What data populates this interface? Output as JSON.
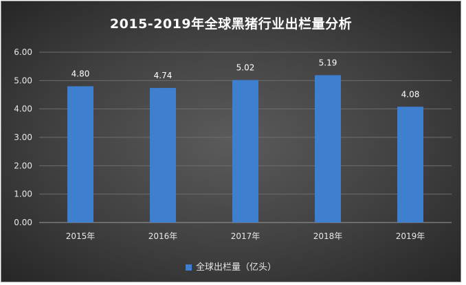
{
  "chart_data": {
    "type": "bar",
    "title": "2015-2019年全球黑猪行业出栏量分析",
    "categories": [
      "2015年",
      "2016年",
      "2017年",
      "2018年",
      "2019年"
    ],
    "series": [
      {
        "name": "全球出栏量（亿头）",
        "values": [
          4.8,
          4.74,
          5.02,
          5.19,
          4.08
        ]
      }
    ],
    "data_labels": [
      "4.80",
      "4.74",
      "5.02",
      "5.19",
      "4.08"
    ],
    "y_ticks": [
      "0.00",
      "1.00",
      "2.00",
      "3.00",
      "4.00",
      "5.00",
      "6.00"
    ],
    "ylim": [
      0,
      6
    ],
    "grid": true,
    "legend_position": "bottom",
    "colors": {
      "bar": "#3f7fd0",
      "grid": "#6e6e6e",
      "background": "#404040"
    }
  }
}
